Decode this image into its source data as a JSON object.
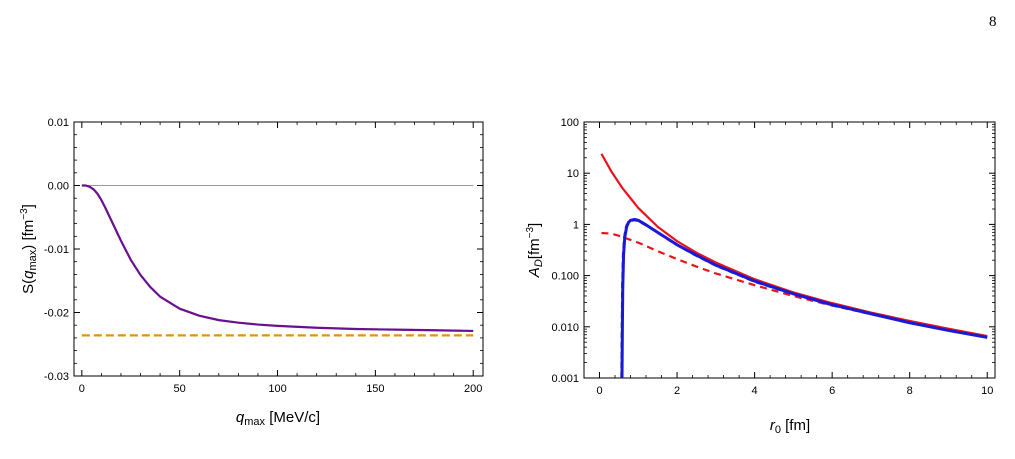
{
  "page": {
    "number": "8"
  },
  "chart_data": [
    {
      "type": "line",
      "xlabel": "q_max [MeV/c]",
      "ylabel": "S(q_max) [fm^-3]",
      "xlim": [
        -4,
        205
      ],
      "ylim": [
        -0.03,
        0.01
      ],
      "x_ticks": [
        "0",
        "50",
        "100",
        "150",
        "200"
      ],
      "y_ticks": [
        "-0.03",
        "-0.02",
        "-0.01",
        "0.00",
        "0.01"
      ],
      "series": [
        {
          "style": "gray-line",
          "color": "#999999",
          "x": [
            0,
            200
          ],
          "y": [
            0,
            0
          ]
        },
        {
          "style": "purple-solid",
          "color": "#6a0f8e",
          "x": [
            0,
            2,
            4,
            6,
            8,
            10,
            12,
            14,
            16,
            18,
            20,
            25,
            30,
            35,
            40,
            50,
            60,
            70,
            80,
            90,
            100,
            120,
            140,
            160,
            180,
            200
          ],
          "y": [
            0,
            0,
            -0.0002,
            -0.0006,
            -0.0013,
            -0.0023,
            -0.0035,
            -0.0048,
            -0.0061,
            -0.0074,
            -0.0087,
            -0.0117,
            -0.0141,
            -0.016,
            -0.0175,
            -0.0194,
            -0.0205,
            -0.0212,
            -0.0216,
            -0.0219,
            -0.0221,
            -0.0224,
            -0.0226,
            -0.0227,
            -0.0228,
            -0.0229
          ]
        },
        {
          "style": "orange-dashed",
          "color": "#e8900c",
          "x": [
            0,
            200
          ],
          "y": [
            -0.0236,
            -0.0236
          ]
        }
      ]
    },
    {
      "type": "line",
      "xlabel": "r_0 [fm]",
      "ylabel": "A_D [fm^-3]",
      "log_y": true,
      "xlim": [
        -0.4,
        10.2
      ],
      "ylim": [
        0.001,
        100
      ],
      "x_ticks": [
        "0",
        "2",
        "4",
        "6",
        "8",
        "10"
      ],
      "y_ticks": [
        "0.001",
        "0.010",
        "0.100",
        "1",
        "10",
        "100"
      ],
      "series": [
        {
          "style": "red-solid",
          "color": "#e8141c",
          "x": [
            0.05,
            0.3,
            0.6,
            1.0,
            1.5,
            2,
            2.5,
            3,
            4,
            5,
            6,
            7,
            8,
            9,
            10
          ],
          "y": [
            24,
            11,
            5,
            2.1,
            0.9,
            0.47,
            0.28,
            0.18,
            0.085,
            0.047,
            0.029,
            0.019,
            0.013,
            0.0092,
            0.0066
          ]
        },
        {
          "style": "red-dashed",
          "color": "#e8141c",
          "x": [
            0.05,
            0.3,
            0.5,
            1.0,
            1.5,
            2,
            2.5,
            3,
            4,
            5,
            6,
            7,
            8,
            9,
            10
          ],
          "y": [
            0.68,
            0.66,
            0.6,
            0.44,
            0.3,
            0.21,
            0.15,
            0.11,
            0.065,
            0.04,
            0.026,
            0.018,
            0.012,
            0.0088,
            0.0064
          ]
        },
        {
          "style": "blue-solid",
          "color": "#1a1ad6",
          "x": [
            0.58,
            0.59,
            0.6,
            0.62,
            0.65,
            0.7,
            0.75,
            0.8,
            0.9,
            1.0,
            1.2,
            1.5,
            2,
            2.5,
            3,
            4,
            5,
            6,
            7,
            8,
            9,
            10
          ],
          "y": [
            0.001,
            0.01,
            0.06,
            0.25,
            0.55,
            0.9,
            1.1,
            1.2,
            1.25,
            1.2,
            0.98,
            0.7,
            0.4,
            0.25,
            0.16,
            0.078,
            0.044,
            0.027,
            0.018,
            0.012,
            0.0085,
            0.0062
          ]
        },
        {
          "style": "blue-dashed",
          "color": "#1a1ad6",
          "x": [
            0.56,
            0.57,
            0.58,
            0.6,
            0.63,
            0.67,
            0.7,
            0.8,
            0.9,
            1.0,
            1.2,
            1.5,
            2,
            2.5,
            3,
            4,
            5,
            6,
            7,
            8,
            9,
            10
          ],
          "y": [
            0.001,
            0.01,
            0.06,
            0.25,
            0.55,
            0.85,
            1.0,
            1.15,
            1.2,
            1.15,
            0.95,
            0.68,
            0.39,
            0.24,
            0.155,
            0.075,
            0.043,
            0.026,
            0.0175,
            0.012,
            0.0084,
            0.0061
          ]
        }
      ]
    }
  ]
}
